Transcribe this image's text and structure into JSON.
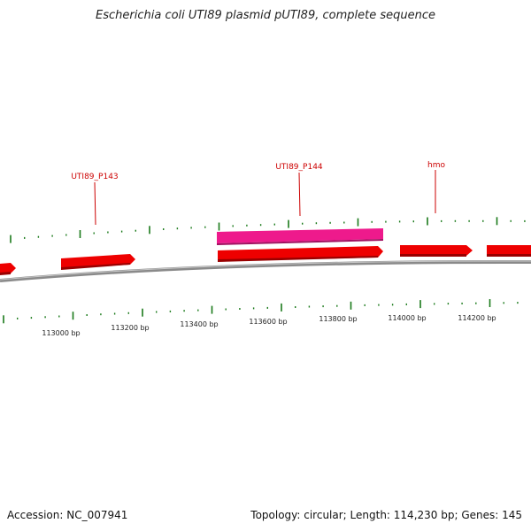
{
  "title": "Escherichia coli UTI89 plasmid pUTI89, complete sequence",
  "footer": {
    "accession": "Accession: NC_007941",
    "summary": "Topology: circular; Length: 114,230 bp; Genes: 145"
  },
  "colors": {
    "gene_forward": "#ee0000",
    "gene_highlight": "#ee1188",
    "backbone": "#888888",
    "ticks": "#1a7a1a",
    "label": "#cc0000"
  },
  "gene_labels": [
    {
      "id": "p143",
      "text": "UTI89_P143"
    },
    {
      "id": "p144",
      "text": "UTI89_P144"
    },
    {
      "id": "hmo",
      "text": "hmo"
    }
  ],
  "scale_labels": [
    "113000 bp",
    "113200 bp",
    "113400 bp",
    "113600 bp",
    "113800 bp",
    "114000 bp",
    "114200 bp"
  ]
}
